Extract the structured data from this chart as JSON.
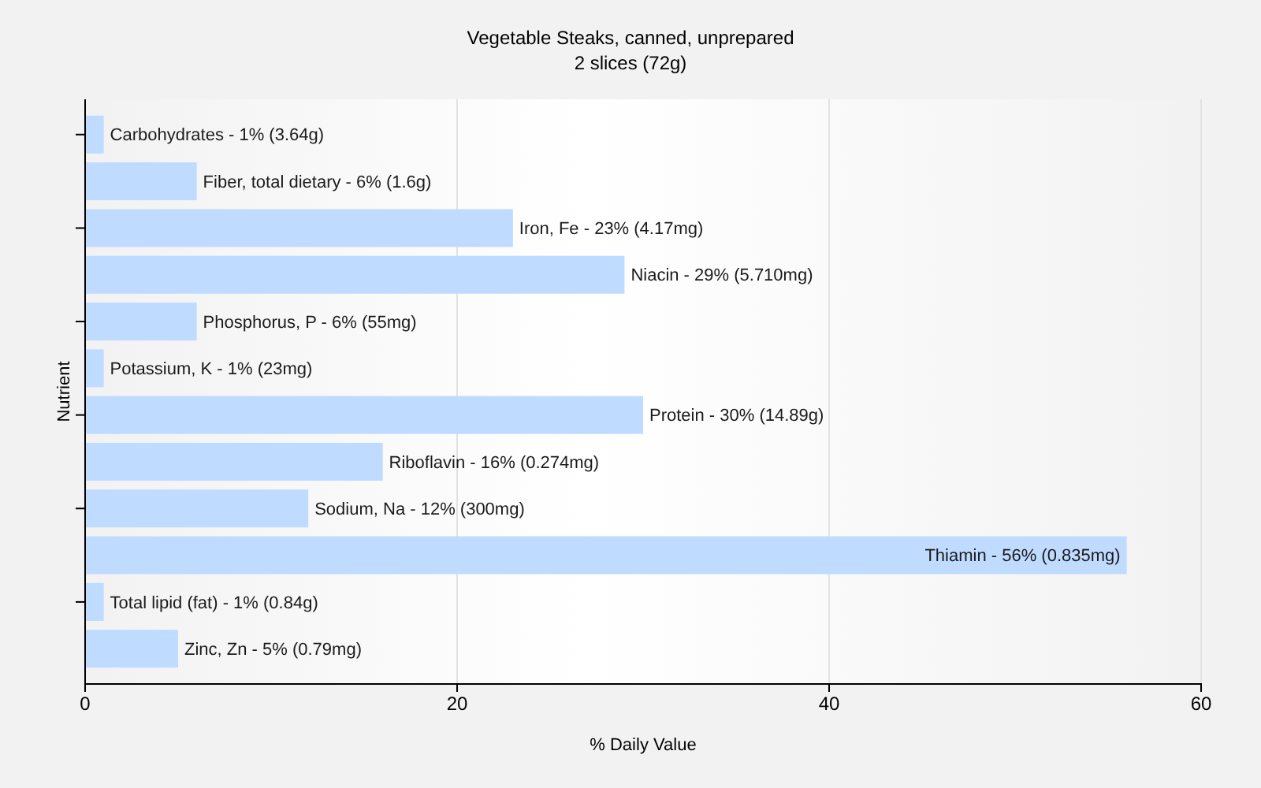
{
  "chart_data": {
    "type": "bar",
    "orientation": "horizontal",
    "title": "Vegetable Steaks, canned, unprepared",
    "subtitle": "2 slices (72g)",
    "xlabel": "% Daily Value",
    "ylabel": "Nutrient",
    "categories": [
      "Carbohydrates - 1% (3.64g)",
      "Fiber, total dietary - 6% (1.6g)",
      "Iron, Fe - 23% (4.17mg)",
      "Niacin - 29% (5.710mg)",
      "Phosphorus, P - 6% (55mg)",
      "Potassium, K - 1% (23mg)",
      "Protein - 30% (14.89g)",
      "Riboflavin - 16% (0.274mg)",
      "Sodium, Na - 12% (300mg)",
      "Thiamin - 56% (0.835mg)",
      "Total lipid (fat) - 1% (0.84g)",
      "Zinc, Zn - 5% (0.79mg)"
    ],
    "values": [
      1,
      6,
      23,
      29,
      6,
      1,
      30,
      16,
      12,
      56,
      1,
      5
    ],
    "color": "#bfdbff",
    "xlim": [
      0,
      60
    ],
    "xticks": [
      0,
      20,
      40,
      60
    ],
    "grid": "x",
    "tick_labels": "x"
  }
}
